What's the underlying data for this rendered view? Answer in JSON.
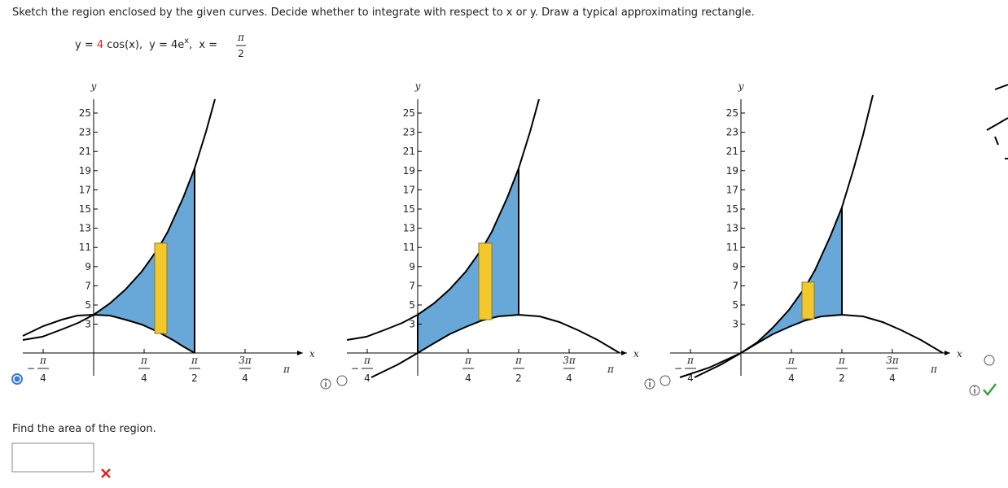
{
  "instruction": "Sketch the region enclosed by the given curves. Decide whether to integrate with respect to x or y. Draw a typical approximating rectangle.",
  "equation": {
    "f1_lhs": "y = ",
    "f1_coef": "4",
    "f1_rest": " cos(x),",
    "f2": "y = 4e",
    "f2_exp": "x",
    "f2_end": ",",
    "x_eq": "x = ",
    "x_num": "π",
    "x_den": "2"
  },
  "graphs": [
    {
      "y_label": "y",
      "x_label": "x",
      "yticks": [
        3,
        5,
        7,
        9,
        11,
        13,
        15,
        17,
        19,
        21,
        23,
        25
      ],
      "xticks": [
        {
          "sign": "−",
          "num": "π",
          "den": "4"
        },
        {
          "num": "π",
          "den": "4"
        },
        {
          "num": "π",
          "den": "2"
        },
        {
          "num": "3π",
          "den": "4"
        },
        {
          "num": "π"
        }
      ]
    },
    {
      "y_label": "y",
      "x_label": "x",
      "yticks": [
        3,
        5,
        7,
        9,
        11,
        13,
        15,
        17,
        19,
        21,
        23,
        25
      ],
      "xticks": [
        {
          "sign": "−",
          "num": "π",
          "den": "4"
        },
        {
          "num": "π",
          "den": "4"
        },
        {
          "num": "π",
          "den": "2"
        },
        {
          "num": "3π",
          "den": "4"
        },
        {
          "num": "π"
        }
      ]
    },
    {
      "y_label": "y",
      "x_label": "x",
      "yticks": [
        3,
        5,
        7,
        9,
        11,
        13,
        15,
        17,
        19,
        21,
        23,
        25
      ],
      "xticks": [
        {
          "sign": "−",
          "num": "π",
          "den": "4"
        },
        {
          "num": "π",
          "den": "4"
        },
        {
          "num": "π",
          "den": "2"
        },
        {
          "num": "3π",
          "den": "4"
        },
        {
          "num": "π"
        }
      ]
    }
  ],
  "question": "Find the area of the region."
}
